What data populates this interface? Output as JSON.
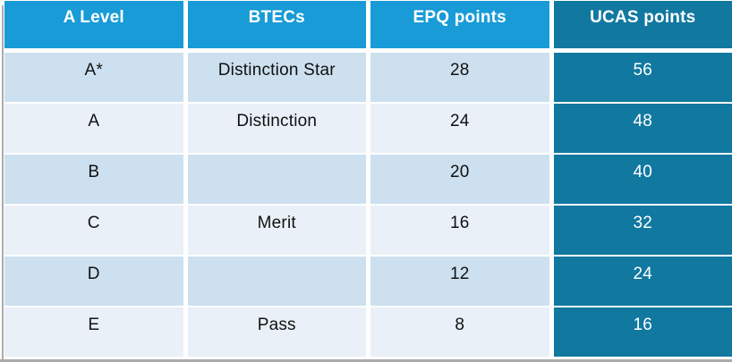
{
  "colors": {
    "header_bg": "#189bd7",
    "header_text": "#ffffff",
    "ucas_bg": "#1178a0",
    "ucas_text": "#ffffff",
    "row_shade_dark": "#cde0ef",
    "row_shade_light": "#e9f0f8",
    "body_text": "#111111",
    "border_gray": "#ababab",
    "gap_white": "#ffffff"
  },
  "chart_data": {
    "type": "table",
    "title": "",
    "columns": [
      "A Level",
      "BTECs",
      "EPQ points",
      "UCAS points"
    ],
    "rows": [
      [
        "A*",
        "Distinction Star",
        "28",
        "56"
      ],
      [
        "A",
        "Distinction",
        "24",
        "48"
      ],
      [
        "B",
        "",
        "20",
        "40"
      ],
      [
        "C",
        "Merit",
        "16",
        "32"
      ],
      [
        "D",
        "",
        "12",
        "24"
      ],
      [
        "E",
        "Pass",
        "8",
        "16"
      ]
    ],
    "layout_hints": {
      "header_fill": "cyan-blue",
      "ucas_column_fill": "dark-teal",
      "body_rows": "alternating light blue shades",
      "grid": "white gaps between cells, gray outer border left and bottom"
    }
  }
}
